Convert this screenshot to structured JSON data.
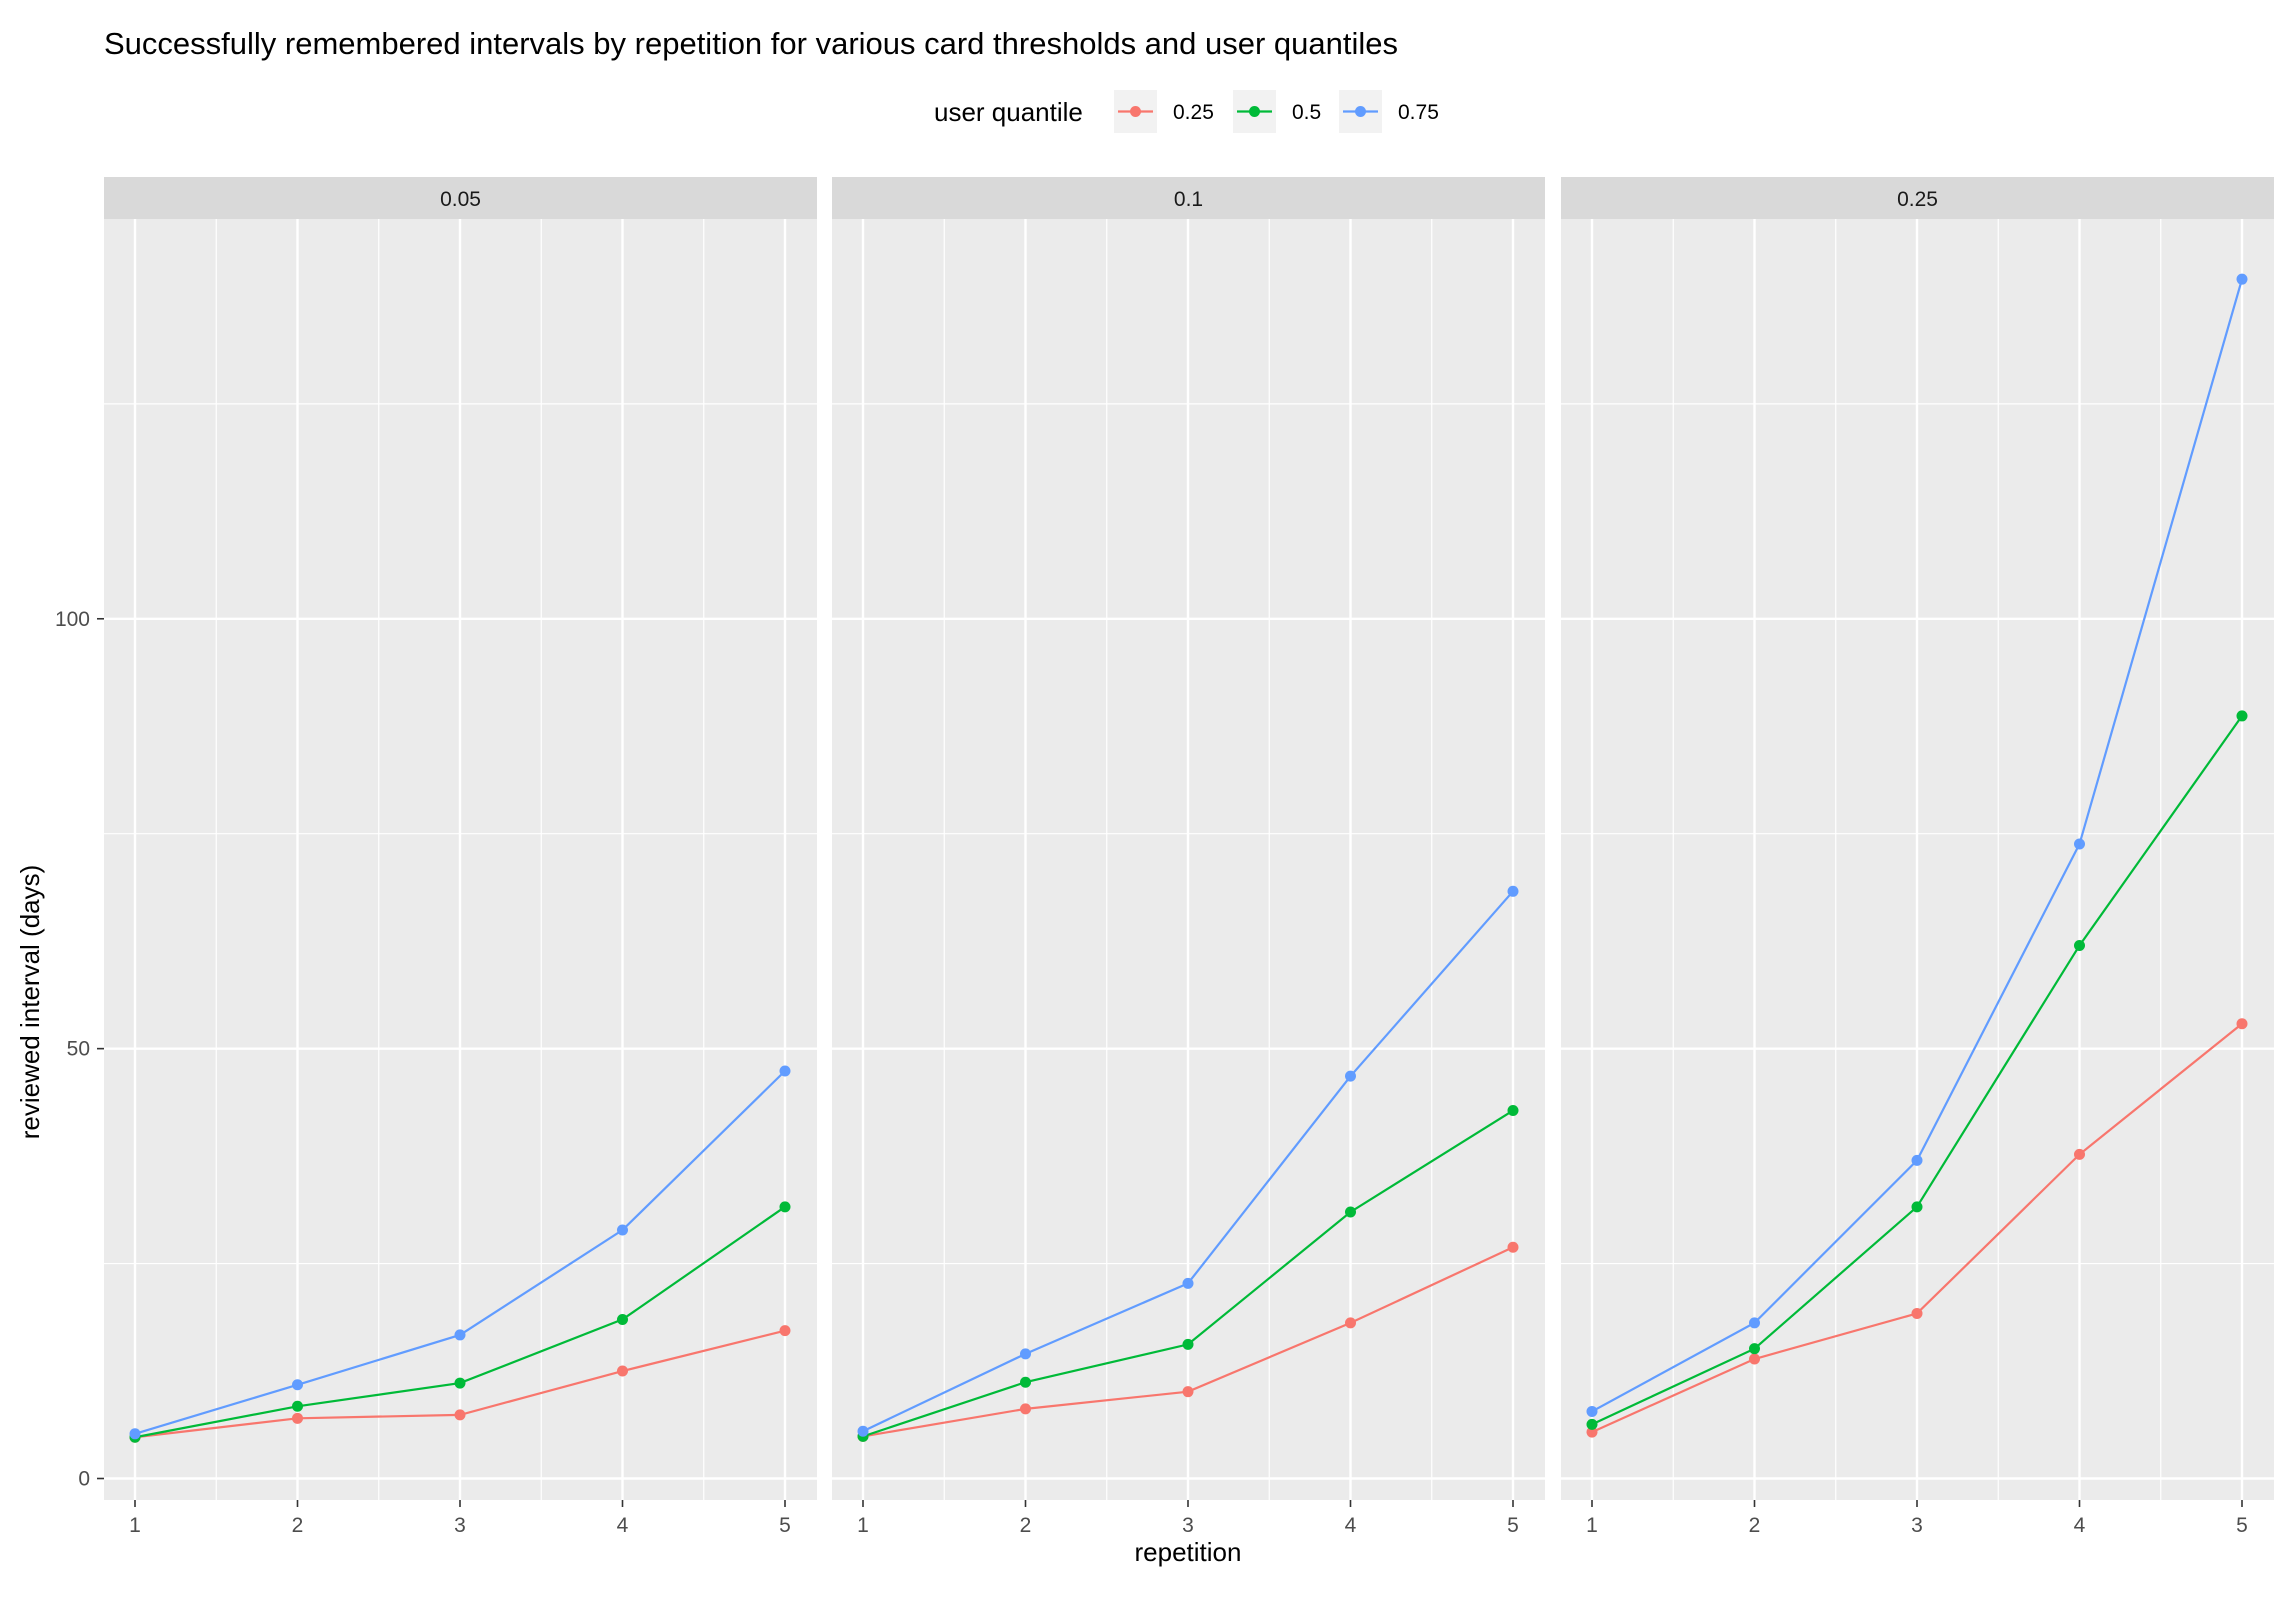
{
  "chart_data": {
    "type": "line",
    "title": "Successfully remembered intervals by repetition for various card thresholds and user quantiles",
    "xlabel": "repetition",
    "ylabel": "reviewed interval (days)",
    "x": [
      1,
      2,
      3,
      4,
      5
    ],
    "x_ticks": [
      "1",
      "2",
      "3",
      "4",
      "5"
    ],
    "y_ticks": [
      "0",
      "50",
      "100"
    ],
    "ylim": [
      -2.5,
      146.5
    ],
    "grid": true,
    "legend": {
      "title": "user quantile",
      "placement": "top",
      "entries": [
        "0.25",
        "0.5",
        "0.75"
      ]
    },
    "colors": {
      "0.25": "#F8766D",
      "0.5": "#00BA38",
      "0.75": "#619CFF"
    },
    "facets": [
      {
        "label": "0.05",
        "series": [
          {
            "name": "0.25",
            "values": [
              4.8,
              7.0,
              7.4,
              12.5,
              17.2
            ]
          },
          {
            "name": "0.5",
            "values": [
              4.8,
              8.4,
              11.1,
              18.5,
              31.6
            ]
          },
          {
            "name": "0.75",
            "values": [
              5.2,
              10.9,
              16.7,
              28.9,
              47.4
            ]
          }
        ]
      },
      {
        "label": "0.1",
        "series": [
          {
            "name": "0.25",
            "values": [
              4.9,
              8.1,
              10.1,
              18.1,
              26.9
            ]
          },
          {
            "name": "0.5",
            "values": [
              4.9,
              11.2,
              15.6,
              31.0,
              42.8
            ]
          },
          {
            "name": "0.75",
            "values": [
              5.5,
              14.5,
              22.7,
              46.8,
              68.3
            ]
          }
        ]
      },
      {
        "label": "0.25",
        "series": [
          {
            "name": "0.25",
            "values": [
              5.4,
              13.9,
              19.2,
              37.7,
              52.9
            ]
          },
          {
            "name": "0.5",
            "values": [
              6.3,
              15.1,
              31.6,
              62.0,
              88.7
            ]
          },
          {
            "name": "0.75",
            "values": [
              7.8,
              18.1,
              37.0,
              73.8,
              139.5
            ]
          }
        ]
      }
    ]
  }
}
